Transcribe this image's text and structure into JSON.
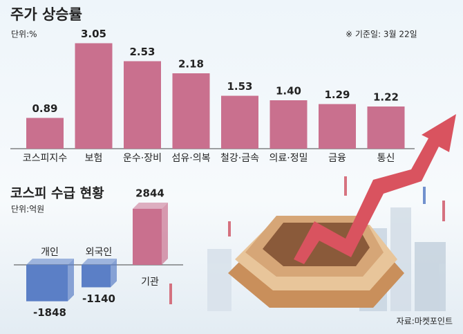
{
  "chart_data": [
    {
      "type": "bar",
      "title": "주가 상승률",
      "subtitle": "단위:%",
      "annotation": "※ 기준일: 3월 22일",
      "categories": [
        "코스피지수",
        "보험",
        "운수·장비",
        "섬유·의복",
        "철강·금속",
        "의료·정밀",
        "금융",
        "통신"
      ],
      "values": [
        0.89,
        3.05,
        2.53,
        2.18,
        1.53,
        1.4,
        1.29,
        1.22
      ],
      "value_labels": [
        "0.89",
        "3.05",
        "2.53",
        "2.18",
        "1.53",
        "1.40",
        "1.29",
        "1.22"
      ],
      "color": "#c9708e"
    },
    {
      "type": "box3d",
      "title": "코스피 수급 현황",
      "subtitle": "단위:억원",
      "source": "자료:마켓포인트",
      "categories": [
        "개인",
        "외국인",
        "기관"
      ],
      "values": [
        -1848,
        -1140,
        2844
      ],
      "colors": [
        "#5b7fc6",
        "#5b7fc6",
        "#c9708e"
      ]
    }
  ]
}
